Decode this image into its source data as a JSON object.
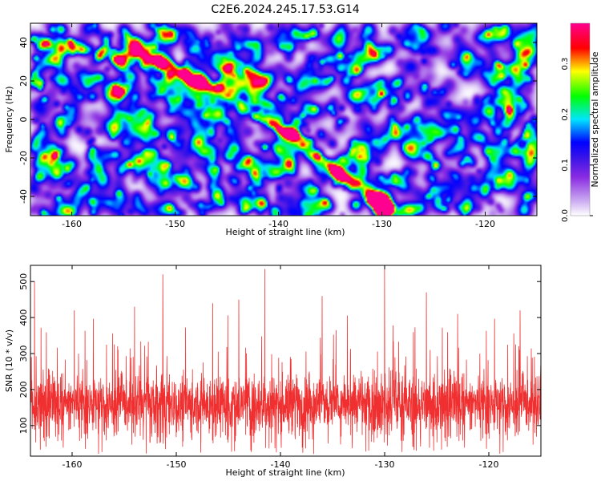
{
  "chart_data": [
    {
      "type": "heatmap",
      "title": "C2E6.2024.245.17.53.G14",
      "xlabel": "Height of straight line (km)",
      "ylabel": "Frequency (Hz)",
      "xlim": [
        -164,
        -115
      ],
      "ylim": [
        -50,
        50
      ],
      "xticks": [
        -160,
        -150,
        -140,
        -130,
        -120
      ],
      "yticks": [
        -40,
        -20,
        0,
        20,
        40
      ],
      "colorbar": {
        "label": "Normalized spectral amplitude",
        "range": [
          0,
          0.38
        ],
        "ticks": [
          0.0,
          0.1,
          0.2,
          0.3
        ],
        "colors": [
          "#ffffff",
          "#8a2be2",
          "#0000ff",
          "#00e5ff",
          "#00ff00",
          "#ffff00",
          "#ff0000",
          "#ff00ff"
        ]
      },
      "background_level": 0.07,
      "ridge": {
        "description_points": [
          {
            "x": -164,
            "y": 42
          },
          {
            "x": -152,
            "y": 30
          },
          {
            "x": -147,
            "y": 18
          },
          {
            "x": -138,
            "y": -11
          },
          {
            "x": -131,
            "y": -40
          },
          {
            "x": -129,
            "y": -48
          }
        ],
        "peaks": [
          {
            "x": -164,
            "y": 42,
            "v": 0.22
          },
          {
            "x": -152.5,
            "y": 30,
            "v": 0.3
          },
          {
            "x": -149.5,
            "y": 25,
            "v": 0.18
          },
          {
            "x": -147,
            "y": 18,
            "v": 0.33
          },
          {
            "x": -141,
            "y": 2,
            "v": 0.16
          },
          {
            "x": -138.5,
            "y": -11,
            "v": 0.2
          },
          {
            "x": -131.5,
            "y": -39,
            "v": 0.17
          },
          {
            "x": -133.5,
            "y": -35,
            "v": 0.14
          }
        ]
      },
      "grid": false
    },
    {
      "type": "line",
      "xlabel": "Height of straight line (km)",
      "ylabel": "SNR (10 * v/v)",
      "xlim": [
        -164,
        -115
      ],
      "ylim": [
        15,
        545
      ],
      "xticks": [
        -160,
        -150,
        -140,
        -130,
        -120
      ],
      "yticks": [
        100,
        200,
        300,
        400,
        500
      ],
      "color": "#f03030",
      "baseline": 160,
      "spread": 70,
      "spikes": [
        {
          "x": -163.6,
          "y": 500
        },
        {
          "x": -151.3,
          "y": 520
        },
        {
          "x": -141.5,
          "y": 535
        },
        {
          "x": -130.0,
          "y": 535
        },
        {
          "x": -144.0,
          "y": 450
        },
        {
          "x": -136.0,
          "y": 460
        },
        {
          "x": -126.0,
          "y": 470
        },
        {
          "x": -146.5,
          "y": 440
        },
        {
          "x": -154.0,
          "y": 430
        },
        {
          "x": -159.8,
          "y": 420
        },
        {
          "x": -123.0,
          "y": 410
        },
        {
          "x": -117.0,
          "y": 420
        }
      ],
      "grid": false
    }
  ]
}
